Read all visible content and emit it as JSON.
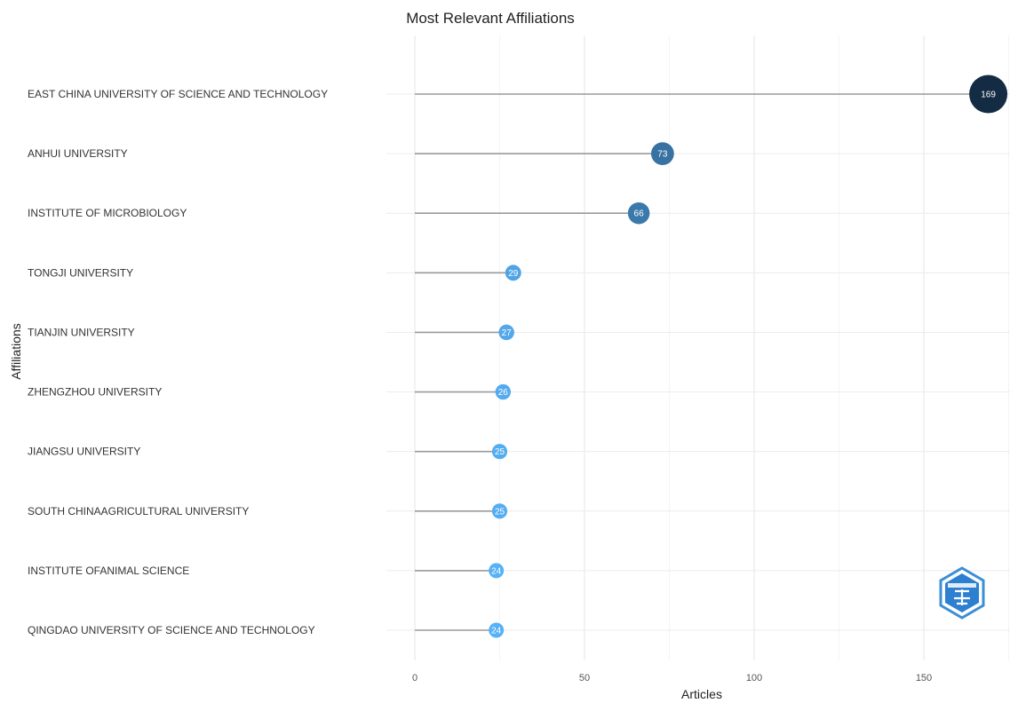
{
  "chart_data": {
    "type": "lollipop",
    "title": "Most Relevant Affiliations",
    "xlabel": "Articles",
    "ylabel": "Affiliations",
    "xlim": [
      0,
      175
    ],
    "xticks": [
      0,
      50,
      100,
      150
    ],
    "grid": true,
    "categories": [
      "EAST CHINA UNIVERSITY OF SCIENCE AND TECHNOLOGY",
      "ANHUI UNIVERSITY",
      "INSTITUTE OF MICROBIOLOGY",
      "TONGJI UNIVERSITY",
      "TIANJIN UNIVERSITY",
      "ZHENGZHOU UNIVERSITY",
      "JIANGSU UNIVERSITY",
      "SOUTH CHINAAGRICULTURAL UNIVERSITY",
      "INSTITUTE OFANIMAL SCIENCE",
      "QINGDAO UNIVERSITY OF SCIENCE AND TECHNOLOGY"
    ],
    "values": [
      169,
      73,
      66,
      29,
      27,
      26,
      25,
      25,
      24,
      24
    ],
    "color_low": "#56B1F7",
    "color_high": "#132B43"
  },
  "watermark": {
    "icon": "hexagon-logo-icon"
  }
}
